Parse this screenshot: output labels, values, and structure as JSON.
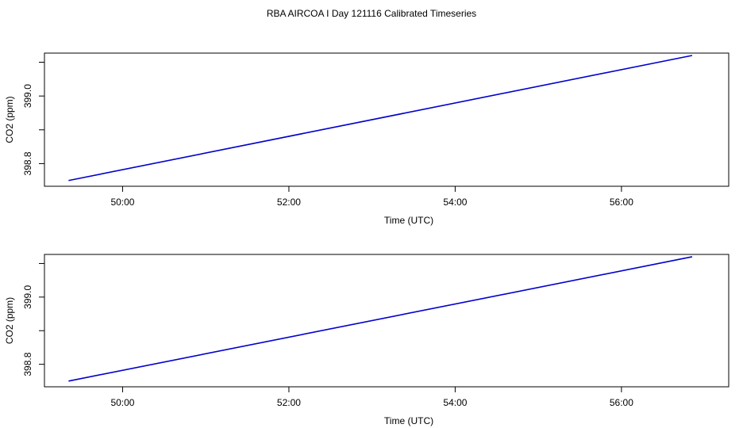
{
  "title": "RBA AIRCOA I  Day 121116  Calibrated Timeseries",
  "colors": {
    "series": "#0000cc",
    "axis": "#000000",
    "background": "#ffffff"
  },
  "chart_data": [
    {
      "type": "line",
      "title": "",
      "xlabel": "Time (UTC)",
      "ylabel": "CO2 (ppm)",
      "xticks": [
        {
          "value": 50,
          "label": "50:00"
        },
        {
          "value": 52,
          "label": "52:00"
        },
        {
          "value": 54,
          "label": "54:00"
        },
        {
          "value": 56,
          "label": "56:00"
        }
      ],
      "yticks": [
        {
          "value": 398.8,
          "label": "398.8"
        },
        {
          "value": 398.9,
          "label": ""
        },
        {
          "value": 399.0,
          "label": "399.0"
        },
        {
          "value": 399.1,
          "label": ""
        }
      ],
      "xlim": [
        49.06,
        57.29
      ],
      "ylim": [
        398.733,
        399.127
      ],
      "grid": false,
      "series": [
        {
          "x": [
            49.35,
            56.85
          ],
          "y": [
            398.75,
            399.12
          ]
        }
      ]
    },
    {
      "type": "line",
      "title": "",
      "xlabel": "Time (UTC)",
      "ylabel": "CO2 (ppm)",
      "xticks": [
        {
          "value": 50,
          "label": "50:00"
        },
        {
          "value": 52,
          "label": "52:00"
        },
        {
          "value": 54,
          "label": "54:00"
        },
        {
          "value": 56,
          "label": "56:00"
        }
      ],
      "yticks": [
        {
          "value": 398.8,
          "label": "398.8"
        },
        {
          "value": 398.9,
          "label": ""
        },
        {
          "value": 399.0,
          "label": "399.0"
        },
        {
          "value": 399.1,
          "label": ""
        }
      ],
      "xlim": [
        49.06,
        57.29
      ],
      "ylim": [
        398.733,
        399.127
      ],
      "grid": false,
      "series": [
        {
          "x": [
            49.35,
            56.85
          ],
          "y": [
            398.75,
            399.12
          ]
        }
      ]
    }
  ]
}
